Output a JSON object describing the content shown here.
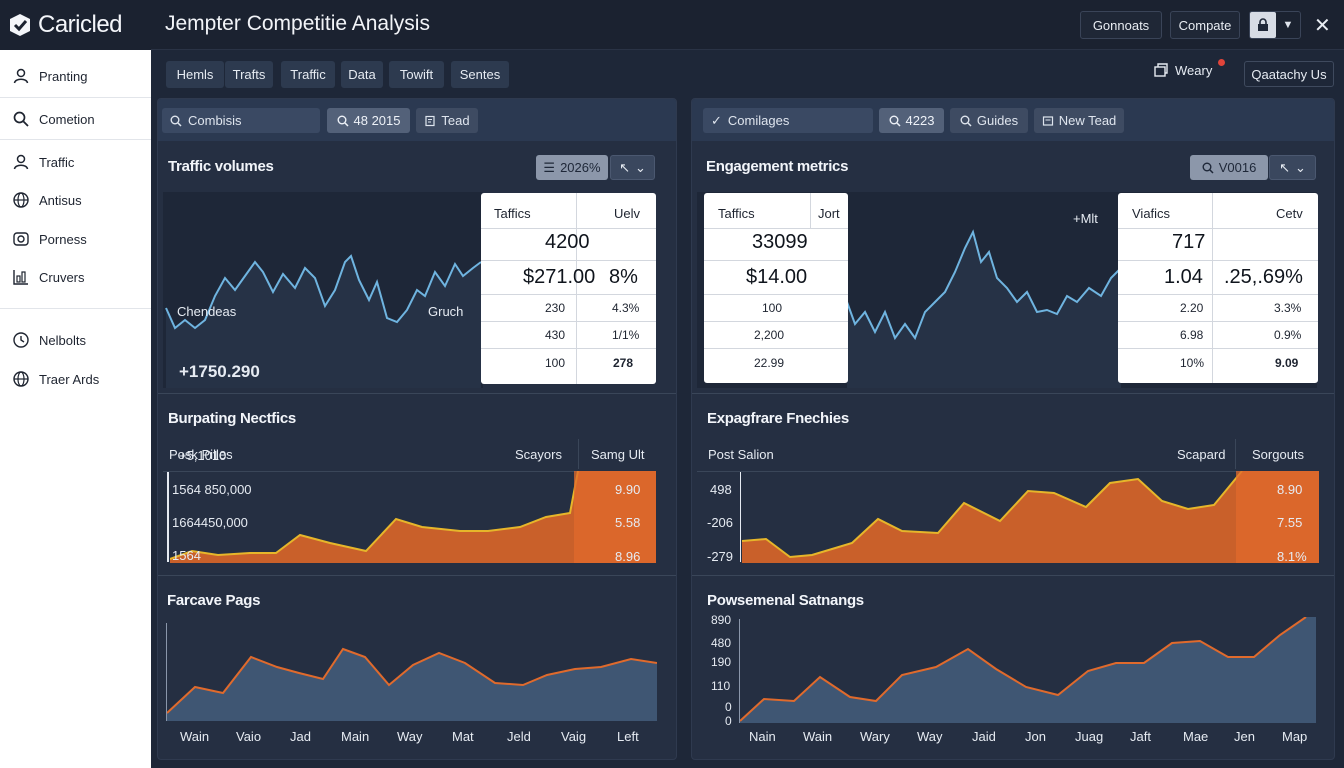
{
  "brand": {
    "name": "Caricled"
  },
  "window": {
    "title": "Jempter Competitie Analysis"
  },
  "titlebar": {
    "btn1": "Gonnoats",
    "btn2": "Compate",
    "dropdown_icon": "chevron-down-icon"
  },
  "sidebar": {
    "items": [
      {
        "label": "Pranting",
        "icon": "user-icon"
      },
      {
        "label": "Cometion",
        "icon": "search-icon"
      },
      {
        "label": "Traffic",
        "icon": "user-icon"
      },
      {
        "label": "Antisus",
        "icon": "globe-icon"
      },
      {
        "label": "Porness",
        "icon": "camera-icon"
      },
      {
        "label": "Cruvers",
        "icon": "chart-icon"
      },
      {
        "label": "Nelbolts",
        "icon": "clock-icon"
      },
      {
        "label": "Traer Ards",
        "icon": "globe-icon"
      }
    ]
  },
  "toolbar": {
    "tabs": [
      "Hemls",
      "Trafts",
      "Traffic",
      "Data",
      "Towift",
      "Sentes"
    ],
    "notify_label": "Weary",
    "quick_label": "Qaatachy Us"
  },
  "left": {
    "search": "Combisis",
    "chip1": "48 2015",
    "chip2": "Tead",
    "s1": {
      "title": "Traffic volumes",
      "ctrl": "2026%",
      "col_a": "Chendeas",
      "col_b": "Gruch",
      "value_big": "+1750.290",
      "value_small": "+5,1010",
      "table": {
        "h1": "Taffics",
        "h2": "Uelv",
        "big1": "4200",
        "big2a": "$271.00",
        "big2b": "8%",
        "rows": [
          [
            "230",
            "4.3%"
          ],
          [
            "430",
            "1/1%"
          ],
          [
            "100",
            "278"
          ]
        ]
      }
    },
    "s2": {
      "title": "Burpating Nectfics",
      "h1": "Posk Pilles",
      "h2": "Scayors",
      "h3": "Samg Ult",
      "rowlbls": [
        "1564 850,000",
        "1664450,000",
        "1564"
      ],
      "vals": [
        "9.90",
        "5.58",
        "8.96"
      ]
    },
    "s3": {
      "title": "Farcave Pags",
      "xlabels": [
        "Wain",
        "Vaio",
        "Jad",
        "Main",
        "Way",
        "Mat",
        "Jeld",
        "Vaig",
        "Left"
      ]
    }
  },
  "right": {
    "search": "Comilages",
    "chip1": "4223",
    "chip2": "Guides",
    "chip3": "New Tead",
    "s1": {
      "title": "Engagement metrics",
      "ctrl": "V0016",
      "extra": "+Mlt",
      "tableA": {
        "h1": "Taffics",
        "h2": "Jort",
        "big1": "33099",
        "big2": "$14.00",
        "rows": [
          "100",
          "2,200",
          "22.99"
        ]
      },
      "tableB": {
        "h1": "Viafics",
        "h2": "Cetv",
        "big1": "717",
        "big2a": "1.04",
        "big2b": ".25,.69%",
        "rows": [
          [
            "2.20",
            "3.3%"
          ],
          [
            "6.98",
            "0.9%"
          ],
          [
            "10%",
            "9.09"
          ]
        ]
      }
    },
    "s2": {
      "title": "Expagfrare Fnechies",
      "h1": "Post Salion",
      "h2": "Scapard",
      "h3": "Sorgouts",
      "rowlbls": [
        "498",
        "-206",
        "-279"
      ],
      "vals": [
        "8.90",
        "7.55",
        "8.1%"
      ]
    },
    "s3": {
      "title": "Powsemenal Satnangs",
      "ylabels": [
        "890",
        "480",
        "190",
        "110",
        "0",
        "0"
      ],
      "xlabels": [
        "Nain",
        "Wain",
        "Wary",
        "Way",
        "Jaid",
        "Jon",
        "Juag",
        "Jaft",
        "Mae",
        "Jen",
        "Map"
      ]
    }
  },
  "colors": {
    "bg": "#1e2738",
    "panel": "#252f42",
    "accent_orange": "#e06a2c",
    "line_blue": "#6fb4e0",
    "line_yellow": "#e6b62a"
  }
}
